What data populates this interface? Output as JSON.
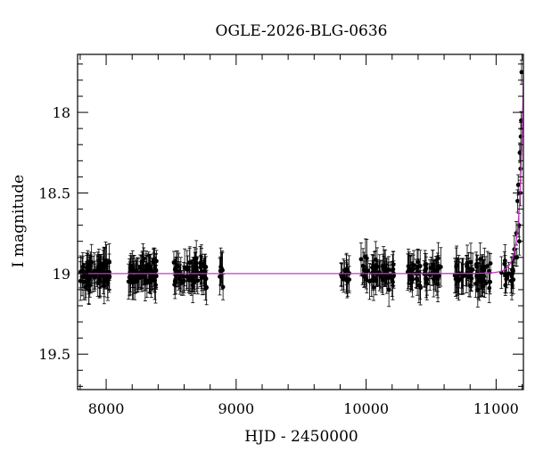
{
  "chart_data": {
    "type": "scatter",
    "title": "OGLE-2026-BLG-0636",
    "xlabel": "HJD - 2450000",
    "ylabel": "I magnitude",
    "xlim": [
      7780,
      11210
    ],
    "ylim": [
      19.72,
      17.64
    ],
    "y_inverted": true,
    "xticks": [
      8000,
      9000,
      10000,
      11000
    ],
    "xtick_labels": [
      "8000",
      "9000",
      "10000",
      "11000"
    ],
    "yticks": [
      18,
      18.5,
      19,
      19.5
    ],
    "ytick_labels": [
      "18",
      "18.5",
      "19",
      "19.5"
    ],
    "grid": false,
    "model_color": "#cc33cc",
    "point_color": "#000000",
    "observation_seasons": [
      {
        "start": 7800,
        "end": 8030,
        "n": 75
      },
      {
        "start": 8170,
        "end": 8400,
        "n": 70
      },
      {
        "start": 8520,
        "end": 8780,
        "n": 70
      },
      {
        "start": 8870,
        "end": 8900,
        "n": 8
      },
      {
        "start": 9800,
        "end": 9870,
        "n": 14
      },
      {
        "start": 9960,
        "end": 10220,
        "n": 55
      },
      {
        "start": 10320,
        "end": 10580,
        "n": 55
      },
      {
        "start": 10680,
        "end": 10960,
        "n": 65
      },
      {
        "start": 11030,
        "end": 11135,
        "n": 18
      }
    ],
    "baseline_mag": 19.0,
    "rising_points": [
      {
        "x": 11140,
        "y": 18.85
      },
      {
        "x": 11148,
        "y": 18.9
      },
      {
        "x": 11155,
        "y": 18.75
      },
      {
        "x": 11160,
        "y": 18.9
      },
      {
        "x": 11165,
        "y": 18.55
      },
      {
        "x": 11170,
        "y": 18.45
      },
      {
        "x": 11175,
        "y": 18.7
      },
      {
        "x": 11178,
        "y": 18.8
      },
      {
        "x": 11182,
        "y": 18.25
      },
      {
        "x": 11186,
        "y": 18.5
      },
      {
        "x": 11188,
        "y": 18.35
      },
      {
        "x": 11190,
        "y": 18.15
      },
      {
        "x": 11193,
        "y": 18.05
      },
      {
        "x": 11196,
        "y": 17.75
      }
    ],
    "model_curve": {
      "t0": 11230,
      "u0": 0.01,
      "tE": 60
    }
  }
}
